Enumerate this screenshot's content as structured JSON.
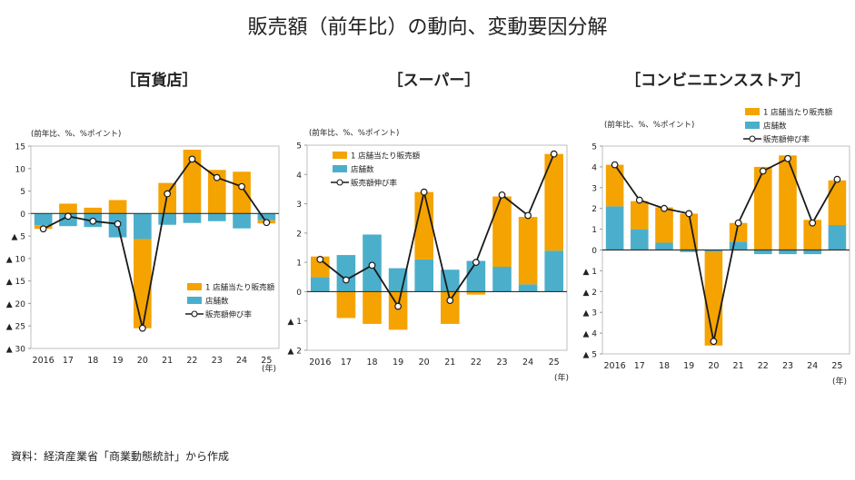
{
  "title": "販売額（前年比）の動向、変動要因分解",
  "footer": "資料：経済産業省「商業動態統計」から作成",
  "colors": {
    "store_sales": "#F5A300",
    "stores": "#4BAFCB",
    "line": "#1a1a1a",
    "axis_frame": "#bfbfbf"
  },
  "chart_data": [
    {
      "type": "bar",
      "title": "［百貨店］",
      "unit_label": "(前年比、%、%ポイント)",
      "categories": [
        "2016",
        "17",
        "18",
        "19",
        "20",
        "21",
        "22",
        "23",
        "24",
        "25"
      ],
      "year_label": "(年)",
      "ylim": [
        -30,
        15
      ],
      "yticks": [
        15,
        10,
        5,
        0,
        -5,
        -10,
        -15,
        -20,
        -25,
        -30
      ],
      "ytick_labels": [
        "15",
        "10",
        "5",
        "0",
        "▲ 5",
        "▲ 10",
        "▲ 15",
        "▲ 20",
        "▲ 25",
        "▲ 30"
      ],
      "legend": [
        "1 店舗当たり販売額",
        "店舗数",
        "販売額伸び率"
      ],
      "series": [
        {
          "name": "1 店舗当たり販売額",
          "kind": "bar",
          "values": [
            -0.8,
            2.2,
            1.3,
            3.0,
            -19.8,
            6.8,
            14.2,
            9.7,
            9.3,
            -0.7
          ]
        },
        {
          "name": "店舗数",
          "kind": "bar",
          "values": [
            -2.6,
            -2.8,
            -3.0,
            -5.3,
            -5.7,
            -2.5,
            -2.1,
            -1.7,
            -3.3,
            -1.5
          ]
        },
        {
          "name": "販売額伸び率",
          "kind": "line",
          "values": [
            -3.4,
            -0.6,
            -1.7,
            -2.3,
            -25.5,
            4.4,
            12.1,
            8.0,
            6.0,
            -2.0
          ]
        }
      ]
    },
    {
      "type": "bar",
      "title": "［スーパー］",
      "unit_label": "(前年比、%、%ポイント)",
      "categories": [
        "2016",
        "17",
        "18",
        "19",
        "20",
        "21",
        "22",
        "23",
        "24",
        "25"
      ],
      "year_label": "(年)",
      "ylim": [
        -2,
        5
      ],
      "yticks": [
        5,
        4,
        3,
        2,
        1,
        0,
        -1,
        -2
      ],
      "ytick_labels": [
        "5",
        "4",
        "3",
        "2",
        "1",
        "0",
        "▲ 1",
        "▲ 2"
      ],
      "legend": [
        "1 店舗当たり販売額",
        "店舗数",
        "販売額伸び率"
      ],
      "series": [
        {
          "name": "1 店舗当たり販売額",
          "kind": "bar",
          "values": [
            0.7,
            -0.9,
            -1.1,
            -1.3,
            2.3,
            -1.1,
            -0.1,
            2.4,
            2.3,
            3.3
          ]
        },
        {
          "name": "店舗数",
          "kind": "bar",
          "values": [
            0.5,
            1.25,
            1.95,
            0.8,
            1.1,
            0.75,
            1.05,
            0.85,
            0.25,
            1.4
          ]
        },
        {
          "name": "販売額伸び率",
          "kind": "line",
          "values": [
            1.1,
            0.4,
            0.9,
            -0.5,
            3.4,
            -0.3,
            1.0,
            3.3,
            2.6,
            4.7
          ]
        }
      ]
    },
    {
      "type": "bar",
      "title": "［コンビニエンスストア］",
      "unit_label": "(前年比、%、%ポイント)",
      "categories": [
        "2016",
        "17",
        "18",
        "19",
        "20",
        "21",
        "22",
        "23",
        "24",
        "25"
      ],
      "year_label": "(年)",
      "ylim": [
        -5,
        5
      ],
      "yticks": [
        5,
        4,
        3,
        2,
        1,
        0,
        -1,
        -2,
        -3,
        -4,
        -5
      ],
      "ytick_labels": [
        "5",
        "4",
        "3",
        "2",
        "1",
        "0",
        "▲ 1",
        "▲ 2",
        "▲ 3",
        "▲ 4",
        "▲ 5"
      ],
      "legend": [
        "1 店舗当たり販売額",
        "店舗数",
        "販売額伸び率"
      ],
      "series": [
        {
          "name": "1 店舗当たり販売額",
          "kind": "bar",
          "values": [
            2.0,
            1.35,
            1.7,
            1.75,
            -4.5,
            0.9,
            4.0,
            4.55,
            1.45,
            2.15
          ]
        },
        {
          "name": "店舗数",
          "kind": "bar",
          "values": [
            2.1,
            1.0,
            0.35,
            -0.1,
            -0.1,
            0.4,
            -0.2,
            -0.2,
            -0.2,
            1.2
          ]
        },
        {
          "name": "販売額伸び率",
          "kind": "line",
          "values": [
            4.1,
            2.4,
            2.0,
            1.75,
            -4.4,
            1.3,
            3.8,
            4.4,
            1.3,
            3.4
          ]
        }
      ]
    }
  ]
}
